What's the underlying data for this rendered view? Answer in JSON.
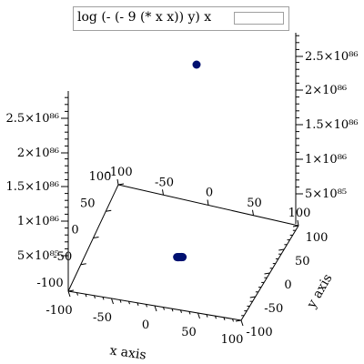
{
  "legend": {
    "label": "log (- (- 9 (* x x)) y) x"
  },
  "chart_data": {
    "type": "scatter",
    "title": "",
    "xlabel": "x axis",
    "ylabel": "y axis",
    "zlabel": "",
    "xlim": [
      -100,
      100
    ],
    "ylim": [
      -100,
      100
    ],
    "zlim": [
      0,
      2.8e+86
    ],
    "x_ticks": [
      "-100",
      "-50",
      "0",
      "50",
      "100"
    ],
    "y_ticks": [
      "-100",
      "-50",
      "0",
      "50",
      "100"
    ],
    "z_ticks_left": [
      "5×10⁸⁵",
      "1×10⁸⁶",
      "1.5×10⁸⁶",
      "2×10⁸⁶",
      "2.5×10⁸⁶"
    ],
    "z_ticks_right": [
      "5×10⁸⁵",
      "1×10⁸⁶",
      "1.5×10⁸⁶",
      "2×10⁸⁶",
      "2.5×10⁸⁶"
    ],
    "point_color": "#001070",
    "series": [
      {
        "x": [
          -1,
          1,
          2,
          -2,
          0,
          3,
          1,
          -1,
          2,
          0,
          -3
        ],
        "y": [
          -2,
          1,
          -1,
          2,
          0,
          1,
          3,
          -3,
          2,
          -1,
          0
        ],
        "z": [
          2.7e+86,
          0,
          0,
          0,
          0,
          0,
          0,
          0,
          0,
          0,
          0
        ]
      }
    ]
  }
}
